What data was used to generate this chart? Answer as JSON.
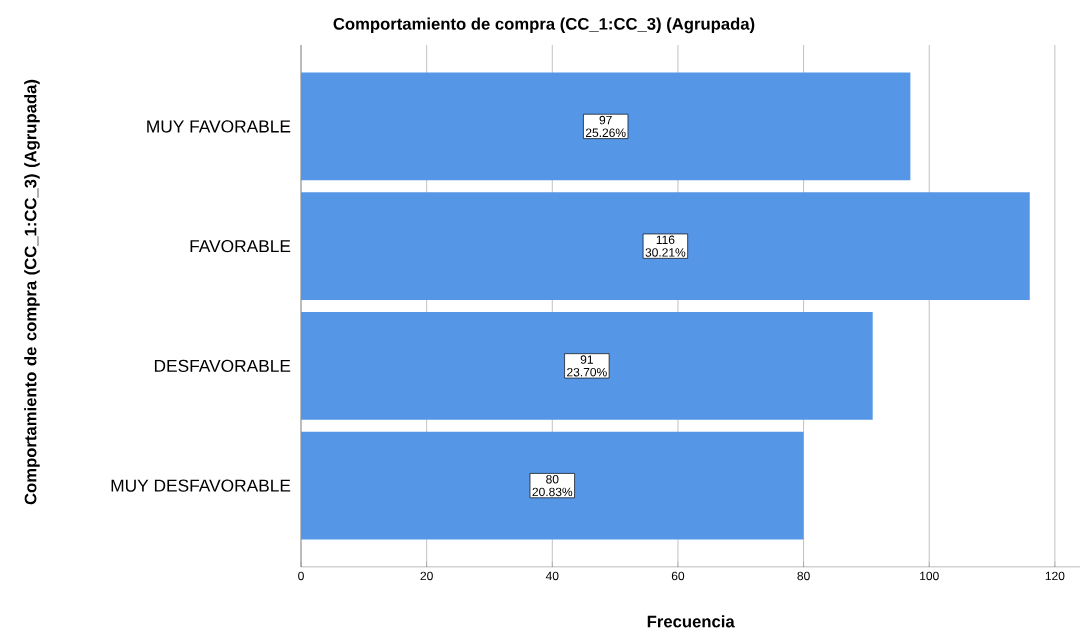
{
  "chart_data": {
    "type": "bar",
    "orientation": "horizontal",
    "title": "Comportamiento de compra (CC_1:CC_3) (Agrupada)",
    "xlabel": "Frecuencia",
    "ylabel": "Comportamiento de compra (CC_1:CC_3) (Agrupada)",
    "categories": [
      "MUY FAVORABLE",
      "FAVORABLE",
      "DESFAVORABLE",
      "MUY DESFAVORABLE"
    ],
    "values": [
      97,
      116,
      91,
      80
    ],
    "value_labels": [
      "97 25.26%",
      "116 30.21%",
      "91 23.70%",
      "80 20.83%"
    ],
    "color": "#5596e6",
    "xlim": [
      0,
      124
    ],
    "xticks": [
      0,
      20,
      40,
      60,
      80,
      100,
      120
    ],
    "grid": "x"
  }
}
